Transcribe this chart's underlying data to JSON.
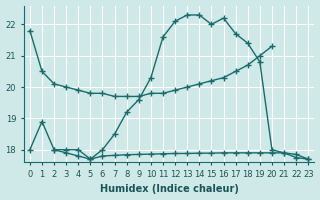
{
  "xlabel": "Humidex (Indice chaleur)",
  "bg_color": "#cfe8e8",
  "grid_color": "#b8d8d8",
  "line_color": "#1a6b6b",
  "xlim": [
    -0.5,
    23.5
  ],
  "ylim": [
    17.6,
    22.6
  ],
  "yticks": [
    18,
    19,
    20,
    21,
    22
  ],
  "xticks": [
    0,
    1,
    2,
    3,
    4,
    5,
    6,
    7,
    8,
    9,
    10,
    11,
    12,
    13,
    14,
    15,
    16,
    17,
    18,
    19,
    20,
    21,
    22,
    23
  ],
  "series": [
    {
      "x": [
        0,
        1,
        2,
        3,
        4,
        5,
        6,
        7,
        8,
        9,
        10,
        11,
        12,
        13,
        14,
        15,
        16,
        17,
        18,
        19,
        20
      ],
      "y": [
        21.8,
        20.5,
        20.1,
        20.0,
        19.9,
        19.8,
        19.8,
        19.7,
        19.7,
        19.7,
        19.8,
        19.8,
        19.9,
        20.0,
        20.1,
        20.2,
        20.3,
        20.5,
        20.7,
        21.0,
        21.3
      ]
    },
    {
      "x": [
        0,
        1,
        2,
        3,
        4,
        5,
        6,
        7,
        8,
        9,
        10,
        11,
        12,
        13,
        14,
        15,
        16,
        17,
        18,
        19,
        20,
        21,
        22,
        23
      ],
      "y": [
        18.0,
        18.9,
        18.0,
        17.9,
        17.8,
        17.7,
        18.0,
        18.5,
        19.2,
        19.6,
        20.3,
        21.6,
        22.1,
        22.3,
        22.3,
        22.0,
        22.2,
        21.7,
        21.4,
        20.8,
        18.0,
        17.9,
        17.75,
        17.7
      ]
    },
    {
      "x": [
        2,
        3,
        4,
        5,
        6,
        7,
        8,
        9,
        10,
        11,
        12,
        13,
        14,
        15,
        16,
        17,
        18,
        19,
        20,
        21,
        22,
        23
      ],
      "y": [
        18.0,
        18.0,
        18.0,
        17.7,
        17.8,
        17.82,
        17.84,
        17.85,
        17.86,
        17.87,
        17.88,
        17.88,
        17.89,
        17.89,
        17.9,
        17.9,
        17.9,
        17.9,
        17.9,
        17.9,
        17.85,
        17.7
      ]
    }
  ]
}
